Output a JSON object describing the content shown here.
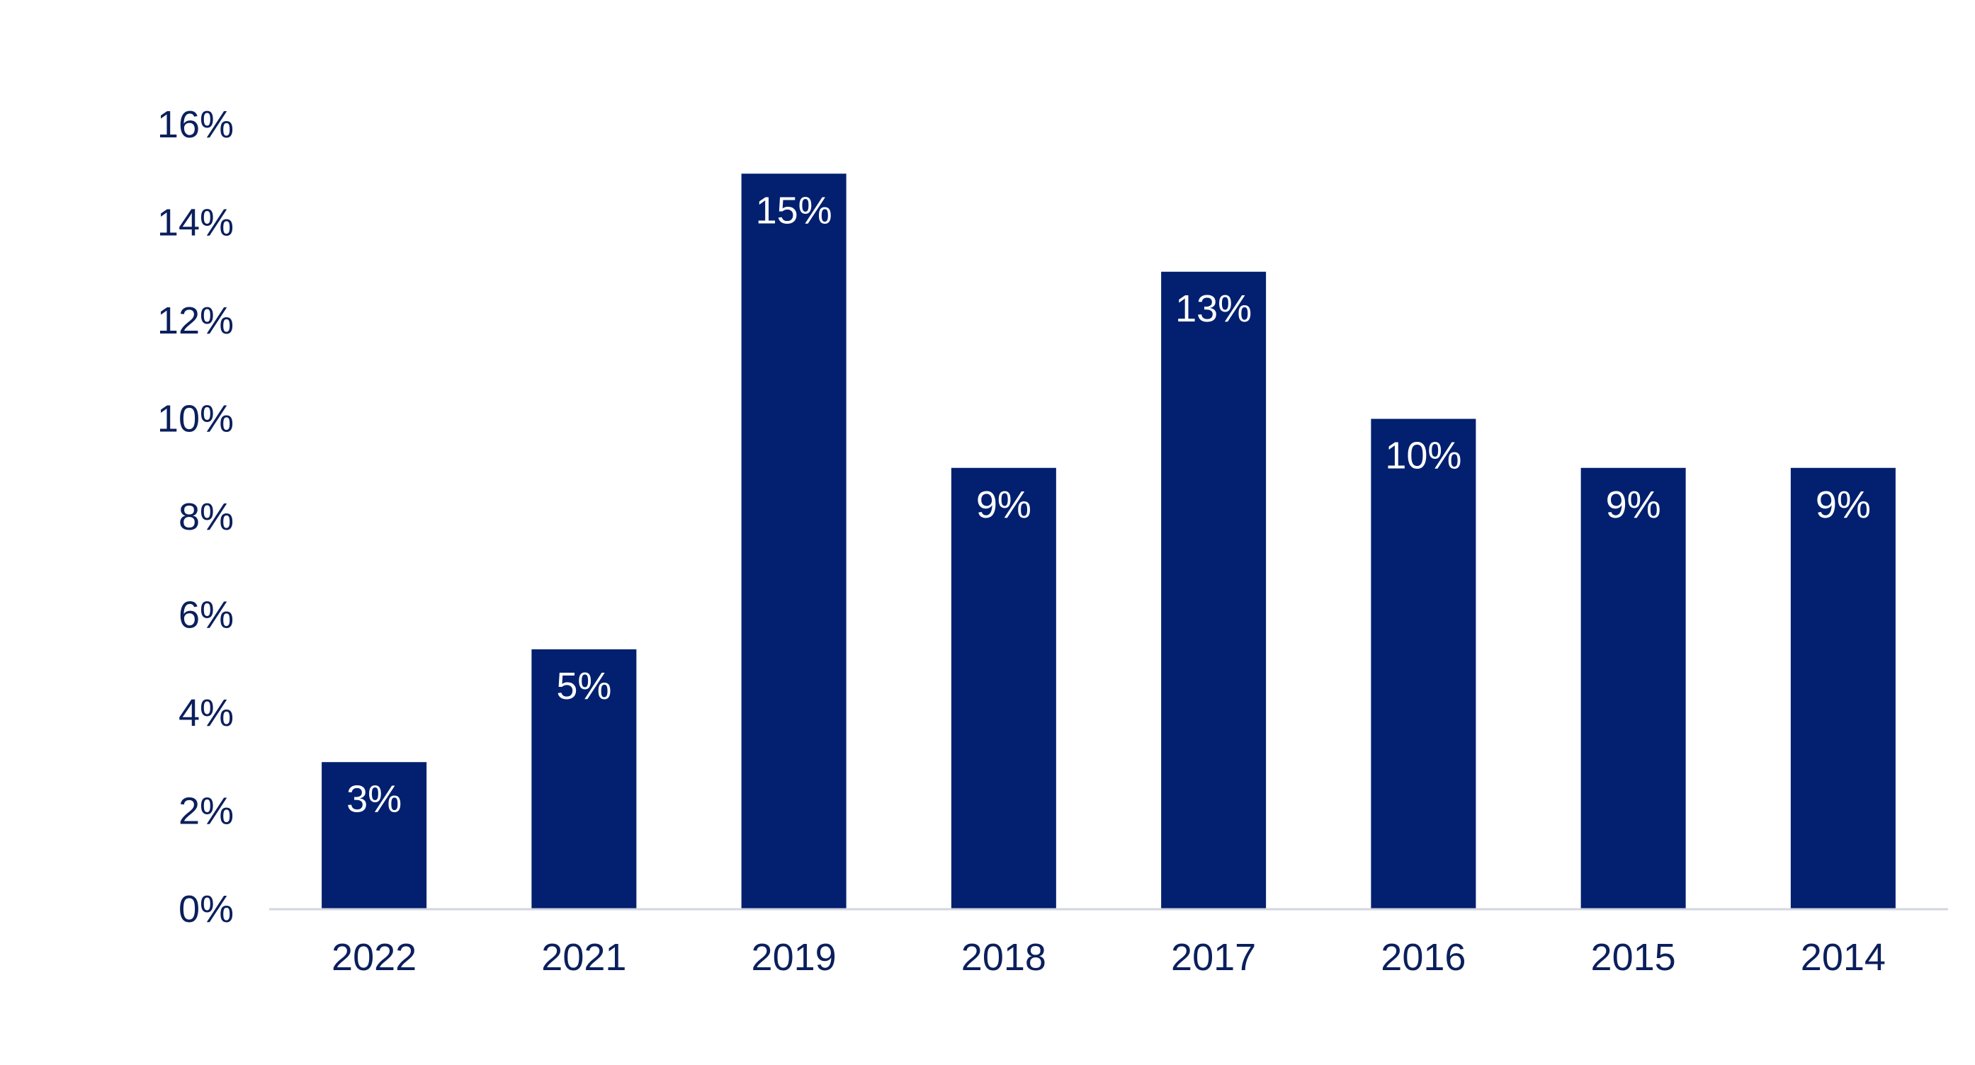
{
  "chart_data": {
    "type": "bar",
    "categories": [
      "2022",
      "2021",
      "2019",
      "2018",
      "2017",
      "2016",
      "2015",
      "2014"
    ],
    "values": [
      3,
      5.3,
      15,
      9,
      13,
      10,
      9,
      9
    ],
    "data_labels": [
      "3%",
      "5%",
      "15%",
      "9%",
      "13%",
      "10%",
      "9%",
      "9%"
    ],
    "ylim": [
      0,
      16
    ],
    "y_ticks": [
      0,
      2,
      4,
      6,
      8,
      10,
      12,
      14,
      16
    ],
    "y_tick_labels": [
      "0%",
      "2%",
      "4%",
      "6%",
      "8%",
      "10%",
      "12%",
      "14%",
      "16%"
    ],
    "title": "",
    "xlabel": "",
    "ylabel": "",
    "grid": false,
    "legend": "none",
    "colors": {
      "bar": "#02206F",
      "text": "#0B1F5C",
      "data_label": "#FFFFFF",
      "baseline": "#D3D5E0"
    }
  }
}
